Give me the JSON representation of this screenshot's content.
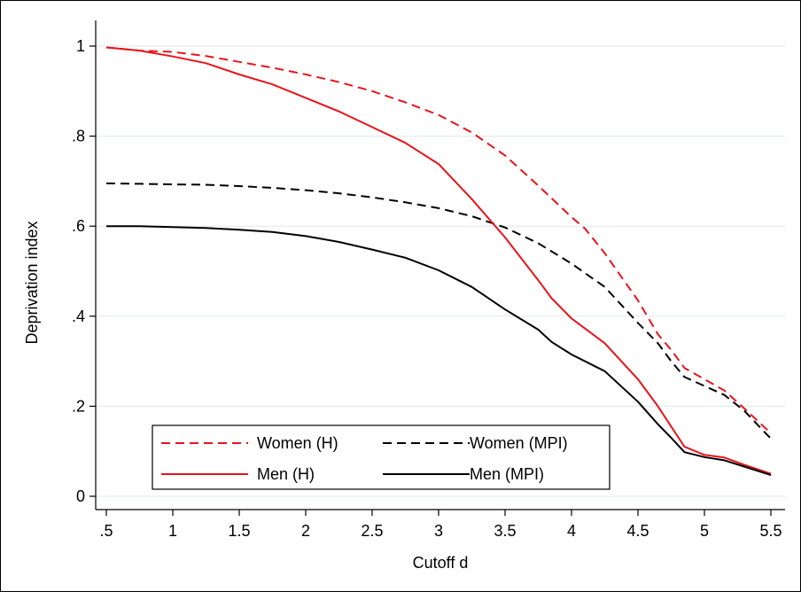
{
  "chart_data": {
    "type": "line",
    "title": "",
    "xlabel": "Cutoff d",
    "ylabel": "Deprivation index",
    "xlim": [
      0.5,
      5.5
    ],
    "ylim": [
      0,
      1
    ],
    "xticks": [
      0.5,
      1,
      1.5,
      2,
      2.5,
      3,
      3.5,
      4,
      4.5,
      5,
      5.5
    ],
    "xtick_labels": [
      ".5",
      "1",
      "1.5",
      "2",
      "2.5",
      "3",
      "3.5",
      "4",
      "4.5",
      "5",
      "5.5"
    ],
    "yticks": [
      0,
      0.2,
      0.4,
      0.6,
      0.8,
      1
    ],
    "ytick_labels": [
      "0",
      ".2",
      ".4",
      ".6",
      ".8",
      "1"
    ],
    "grid": "horizontal",
    "legend_position": "bottom-left",
    "series": [
      {
        "name": "Women (H)",
        "color": "#e8141b",
        "dash": "dashed",
        "x": [
          0.5,
          0.75,
          1,
          1.25,
          1.5,
          1.75,
          2,
          2.25,
          2.5,
          2.75,
          3,
          3.25,
          3.5,
          3.75,
          4,
          4.1,
          4.25,
          4.5,
          4.65,
          4.75,
          4.85,
          5,
          5.15,
          5.3,
          5.5
        ],
        "y": [
          0.997,
          0.99,
          0.987,
          0.978,
          0.965,
          0.952,
          0.937,
          0.92,
          0.9,
          0.875,
          0.847,
          0.808,
          0.757,
          0.69,
          0.62,
          0.595,
          0.54,
          0.435,
          0.36,
          0.325,
          0.285,
          0.26,
          0.235,
          0.195,
          0.14
        ]
      },
      {
        "name": "Women (MPI)",
        "color": "#000000",
        "dash": "dashed",
        "x": [
          0.5,
          0.75,
          1,
          1.25,
          1.5,
          1.75,
          2,
          2.25,
          2.5,
          2.75,
          3,
          3.25,
          3.5,
          3.75,
          4,
          4.25,
          4.5,
          4.65,
          4.75,
          4.85,
          5,
          5.15,
          5.3,
          5.5
        ],
        "y": [
          0.695,
          0.694,
          0.693,
          0.692,
          0.689,
          0.685,
          0.68,
          0.673,
          0.664,
          0.653,
          0.64,
          0.622,
          0.597,
          0.562,
          0.517,
          0.465,
          0.385,
          0.34,
          0.3,
          0.265,
          0.245,
          0.225,
          0.19,
          0.128
        ]
      },
      {
        "name": "Men (H)",
        "color": "#e8141b",
        "dash": "solid",
        "x": [
          0.5,
          0.75,
          1,
          1.25,
          1.5,
          1.75,
          2,
          2.25,
          2.5,
          2.75,
          3,
          3.25,
          3.5,
          3.75,
          3.85,
          4,
          4.25,
          4.5,
          4.65,
          4.75,
          4.85,
          5,
          5.15,
          5.3,
          5.5
        ],
        "y": [
          0.997,
          0.99,
          0.977,
          0.962,
          0.937,
          0.915,
          0.885,
          0.855,
          0.82,
          0.785,
          0.738,
          0.66,
          0.575,
          0.48,
          0.44,
          0.395,
          0.34,
          0.26,
          0.2,
          0.155,
          0.11,
          0.092,
          0.086,
          0.07,
          0.05
        ]
      },
      {
        "name": "Men (MPI)",
        "color": "#000000",
        "dash": "solid",
        "x": [
          0.5,
          0.75,
          1,
          1.25,
          1.5,
          1.75,
          2,
          2.25,
          2.5,
          2.75,
          3,
          3.25,
          3.5,
          3.75,
          3.85,
          4,
          4.25,
          4.5,
          4.65,
          4.75,
          4.85,
          5,
          5.15,
          5.3,
          5.5
        ],
        "y": [
          0.6,
          0.6,
          0.598,
          0.596,
          0.592,
          0.587,
          0.578,
          0.565,
          0.548,
          0.53,
          0.502,
          0.465,
          0.415,
          0.37,
          0.343,
          0.315,
          0.278,
          0.21,
          0.16,
          0.13,
          0.098,
          0.087,
          0.08,
          0.066,
          0.047
        ]
      }
    ]
  }
}
